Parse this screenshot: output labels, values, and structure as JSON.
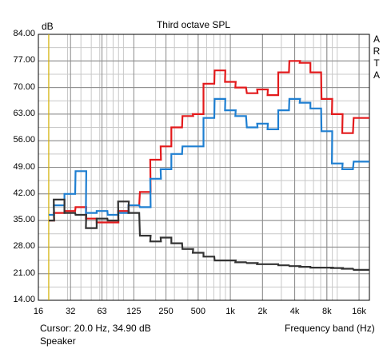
{
  "chart_data": {
    "type": "line",
    "title": "Third octave SPL",
    "ylabel": "dB",
    "xlabel": "Frequency band (Hz)",
    "side_label": [
      "A",
      "R",
      "T",
      "A"
    ],
    "cursor_text": "Cursor:    20.0 Hz, 34.90 dB",
    "cursor_freq": 20,
    "footer_label": "Speaker",
    "x_scale": "log",
    "xlim": [
      16,
      20000
    ],
    "ylim": [
      14,
      84
    ],
    "y_ticks": [
      "84.00",
      "77.00",
      "70.00",
      "63.00",
      "56.00",
      "49.00",
      "42.00",
      "35.00",
      "28.00",
      "21.00",
      "14.00"
    ],
    "y_tick_values": [
      84,
      77,
      70,
      63,
      56,
      49,
      42,
      35,
      28,
      21,
      14
    ],
    "x_ticks": [
      "16",
      "32",
      "63",
      "125",
      "250",
      "500",
      "1k",
      "2k",
      "4k",
      "8k",
      "16k"
    ],
    "x_tick_values": [
      16,
      32,
      63,
      125,
      250,
      500,
      1000,
      2000,
      4000,
      8000,
      16000
    ],
    "grid": true,
    "bands": [
      20,
      25,
      31.5,
      40,
      50,
      63,
      80,
      100,
      125,
      160,
      200,
      250,
      315,
      400,
      500,
      630,
      800,
      1000,
      1250,
      1600,
      2000,
      2500,
      3150,
      4000,
      5000,
      6300,
      8000,
      10000,
      12500,
      16000,
      20000
    ],
    "series": [
      {
        "color": "#e31a1c",
        "values": [
          35.0,
          37.0,
          37.5,
          38.5,
          35.5,
          34.5,
          34.5,
          37.5,
          39.0,
          42.5,
          51.0,
          54.5,
          59.5,
          62.5,
          63.0,
          71.0,
          74.5,
          71.5,
          70.0,
          68.5,
          69.5,
          68.0,
          74.0,
          77.0,
          76.5,
          74.0,
          67.0,
          63.0,
          58.0,
          62.0,
          62.0
        ]
      },
      {
        "color": "#1f7fd1",
        "values": [
          36.5,
          39.0,
          42.0,
          48.0,
          37.0,
          37.5,
          36.5,
          37.0,
          39.0,
          38.5,
          46.0,
          48.5,
          52.5,
          54.5,
          54.5,
          62.0,
          67.0,
          64.0,
          62.5,
          59.5,
          60.5,
          59.0,
          64.0,
          67.0,
          66.0,
          64.5,
          58.5,
          50.0,
          48.5,
          50.5,
          50.5
        ]
      },
      {
        "color": "#333333",
        "values": [
          35.0,
          40.5,
          37.0,
          36.5,
          33.0,
          35.5,
          35.0,
          40.0,
          37.0,
          31.0,
          29.5,
          30.5,
          29.0,
          27.5,
          26.5,
          25.5,
          24.5,
          24.5,
          24.0,
          23.8,
          23.5,
          23.5,
          23.2,
          23.0,
          22.8,
          22.6,
          22.6,
          22.5,
          22.3,
          22.0,
          22.0
        ]
      }
    ]
  }
}
